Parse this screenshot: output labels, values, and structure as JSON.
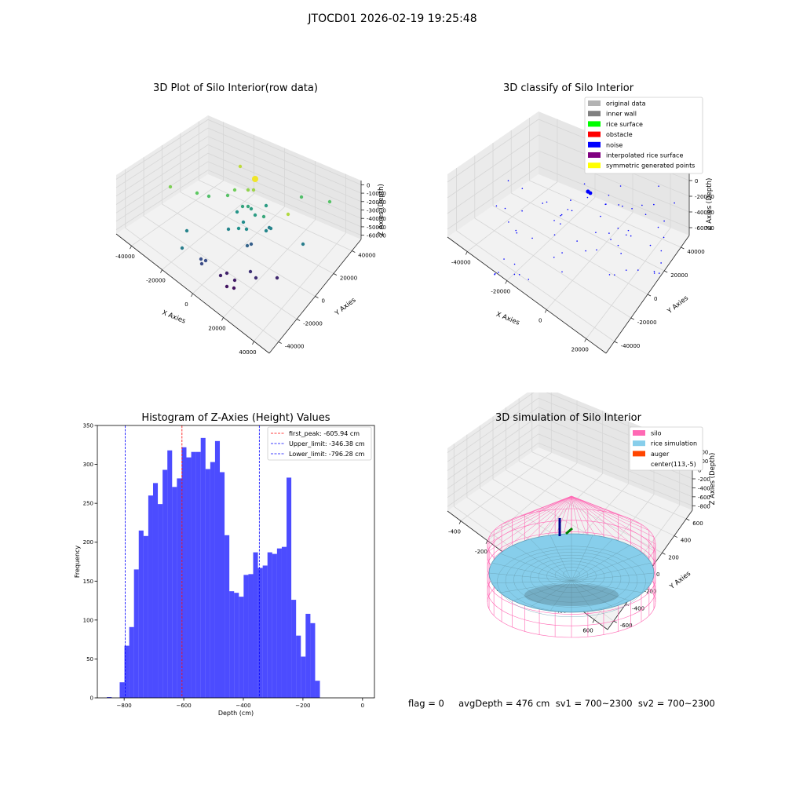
{
  "figure": {
    "suptitle": "JTOCD01 2026-02-19 19:25:48",
    "footer": "flag = 0     avgDepth = 476 cm  sv1 = 700~2300  sv2 = 700~2300"
  },
  "chart_data": [
    {
      "type": "scatter3d",
      "title": "3D Plot of Silo Interior(row data)",
      "xlabel": "X Axies",
      "ylabel": "Y Axies",
      "zlabel": "Z Axies (Depth)",
      "x_ticks": [
        "-40000",
        "-20000",
        "0",
        "20000",
        "40000"
      ],
      "y_ticks": [
        "-40000",
        "-20000",
        "0",
        "20000",
        "40000"
      ],
      "z_ticks": [
        "0",
        "-10000",
        "-20000",
        "-30000",
        "-40000",
        "-50000",
        "-60000"
      ],
      "colormap": "viridis"
    },
    {
      "type": "scatter3d",
      "title": "3D classify of Silo Interior",
      "xlabel": "X Axies",
      "ylabel": "Y Axies",
      "zlabel": "Z Axies (Depth)",
      "x_ticks": [
        "-40000",
        "-20000",
        "0",
        "20000"
      ],
      "y_ticks": [
        "-40000",
        "-20000",
        "0",
        "20000",
        "40000"
      ],
      "z_ticks": [
        "0",
        "-20000",
        "-40000",
        "-60000"
      ],
      "legend": [
        {
          "label": "original data",
          "color": "#b3b3b3"
        },
        {
          "label": "inner wall",
          "color": "#808080"
        },
        {
          "label": "rice surface",
          "color": "#00ff00"
        },
        {
          "label": "obstacle",
          "color": "#ff0000"
        },
        {
          "label": "noise",
          "color": "#0000ff"
        },
        {
          "label": "interpolated rice surface",
          "color": "#800080"
        },
        {
          "label": "symmetric generated points",
          "color": "#ffff00"
        }
      ],
      "legend_position": "top-right"
    },
    {
      "type": "bar",
      "title": "Histogram of Z-Axies (Height) Values",
      "xlabel": "Depth (cm)",
      "ylabel": "Frequency",
      "xlim": [
        -890,
        40
      ],
      "ylim": [
        0,
        350
      ],
      "x_ticks": [
        -800,
        -600,
        -400,
        -200,
        0
      ],
      "y_ticks": [
        0,
        50,
        100,
        150,
        200,
        250,
        300,
        350
      ],
      "bar_color": "#0000ff",
      "bin_start": -815,
      "bin_width": 16,
      "values": [
        20,
        67,
        91,
        165,
        215,
        208,
        260,
        276,
        249,
        293,
        318,
        271,
        282,
        322,
        309,
        316,
        316,
        334,
        294,
        303,
        330,
        290,
        209,
        137,
        135,
        130,
        158,
        159,
        187,
        167,
        170,
        187,
        185,
        192,
        194,
        283,
        126,
        80,
        53,
        108,
        96,
        22
      ],
      "outlier_bars": [
        {
          "x": -858,
          "value": 1
        }
      ],
      "lines": [
        {
          "x": -605.94,
          "label": "first_peak: -605.94 cm",
          "color": "#ff0000"
        },
        {
          "x": -346.38,
          "label": "Upper_limit: -346.38 cm",
          "color": "#0000ff"
        },
        {
          "x": -796.28,
          "label": "Lower_limit: -796.28 cm",
          "color": "#0000ff"
        }
      ],
      "legend_position": "top-right",
      "grid": false
    },
    {
      "type": "surface3d",
      "title": "3D simulation of Silo Interior",
      "xlabel": "X Axies",
      "ylabel": "Y Axies",
      "zlabel": "Z Axies (Depth)",
      "x_ticks": [
        "-400",
        "-200",
        "0",
        "200",
        "400",
        "600"
      ],
      "y_ticks": [
        "-600",
        "-400",
        "-200",
        "0",
        "200",
        "400",
        "600"
      ],
      "z_ticks": [
        "400",
        "200",
        "0",
        "-200",
        "-400",
        "-600",
        "-800"
      ],
      "legend": [
        {
          "label": "silo",
          "color": "#ff69b4"
        },
        {
          "label": "rice simulation",
          "color": "#87ceeb"
        },
        {
          "label": "auger",
          "color": "#ff4500"
        },
        {
          "label": "center(113,-5)",
          "color": ""
        }
      ],
      "legend_position": "top-right"
    }
  ]
}
